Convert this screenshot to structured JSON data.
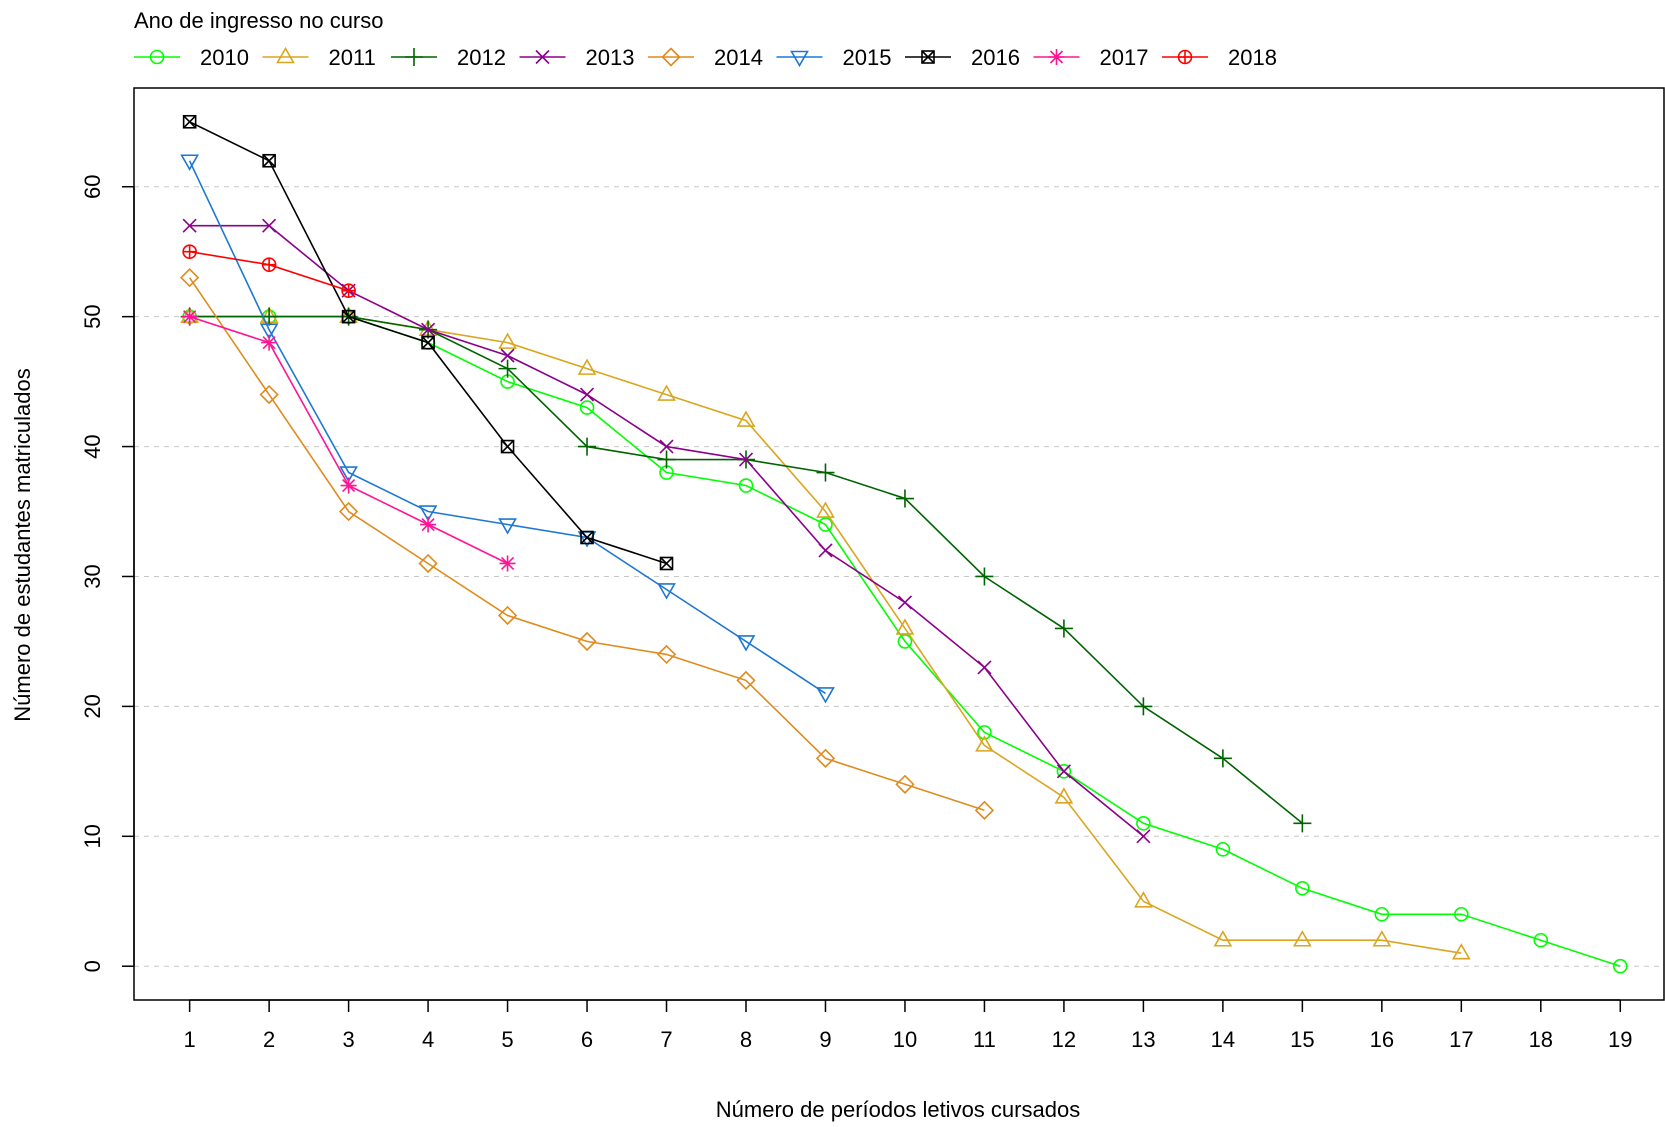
{
  "chart_data": {
    "type": "line",
    "legend_title": "Ano de ingresso no curso",
    "legend_position": "top",
    "xlabel": "Número de períodos letivos cursados",
    "ylabel": "Número de estudantes matriculados",
    "x_ticks": [
      1,
      2,
      3,
      4,
      5,
      6,
      7,
      8,
      9,
      10,
      11,
      12,
      13,
      14,
      15,
      16,
      17,
      18,
      19
    ],
    "y_ticks": [
      0,
      10,
      20,
      30,
      40,
      50,
      60
    ],
    "xlim": [
      0.3,
      19.55
    ],
    "ylim": [
      -2.6,
      67.6
    ],
    "grid": "horizontal dashed",
    "series": [
      {
        "name": "2010",
        "color": "#00ff00",
        "marker": "circle",
        "x": [
          1,
          2,
          3,
          4,
          5,
          6,
          7,
          8,
          9,
          10,
          11,
          12,
          13,
          14,
          15,
          16,
          17,
          18,
          19
        ],
        "y": [
          50,
          50,
          50,
          48,
          45,
          43,
          38,
          37,
          34,
          25,
          18,
          15,
          11,
          9,
          6,
          4,
          4,
          2,
          0
        ]
      },
      {
        "name": "2011",
        "color": "#daa520",
        "marker": "triangle-up",
        "x": [
          1,
          2,
          3,
          4,
          5,
          6,
          7,
          8,
          9,
          10,
          11,
          12,
          13,
          14,
          15,
          16,
          17
        ],
        "y": [
          50,
          50,
          50,
          49,
          48,
          46,
          44,
          42,
          35,
          26,
          17,
          13,
          5,
          2,
          2,
          2,
          1
        ]
      },
      {
        "name": "2012",
        "color": "#006400",
        "marker": "plus",
        "x": [
          1,
          2,
          3,
          4,
          5,
          6,
          7,
          8,
          9,
          10,
          11,
          12,
          13,
          14,
          15
        ],
        "y": [
          50,
          50,
          50,
          49,
          46,
          40,
          39,
          39,
          38,
          36,
          30,
          26,
          20,
          16,
          11
        ]
      },
      {
        "name": "2013",
        "color": "#8b008b",
        "marker": "cross",
        "x": [
          1,
          2,
          3,
          4,
          5,
          6,
          7,
          8,
          9,
          10,
          11,
          12,
          13
        ],
        "y": [
          57,
          57,
          52,
          49,
          47,
          44,
          40,
          39,
          32,
          28,
          23,
          15,
          10
        ]
      },
      {
        "name": "2014",
        "color": "#e08a1e",
        "marker": "diamond",
        "x": [
          1,
          2,
          3,
          4,
          5,
          6,
          7,
          8,
          9,
          10,
          11
        ],
        "y": [
          53,
          44,
          35,
          31,
          27,
          25,
          24,
          22,
          16,
          14,
          12
        ]
      },
      {
        "name": "2015",
        "color": "#1e78d2",
        "marker": "triangle-down",
        "x": [
          1,
          2,
          3,
          4,
          5,
          6,
          7,
          8,
          9
        ],
        "y": [
          62,
          49,
          38,
          35,
          34,
          33,
          29,
          25,
          21
        ]
      },
      {
        "name": "2016",
        "color": "#000000",
        "marker": "square-x",
        "x": [
          1,
          2,
          3,
          4,
          5,
          6,
          7
        ],
        "y": [
          65,
          62,
          50,
          48,
          40,
          33,
          31
        ]
      },
      {
        "name": "2017",
        "color": "#ff1493",
        "marker": "asterisk",
        "x": [
          1,
          2,
          3,
          4,
          5
        ],
        "y": [
          50,
          48,
          37,
          34,
          31
        ]
      },
      {
        "name": "2018",
        "color": "#ff0000",
        "marker": "circle-plus",
        "x": [
          1,
          2,
          3
        ],
        "y": [
          55,
          54,
          52
        ]
      }
    ]
  }
}
